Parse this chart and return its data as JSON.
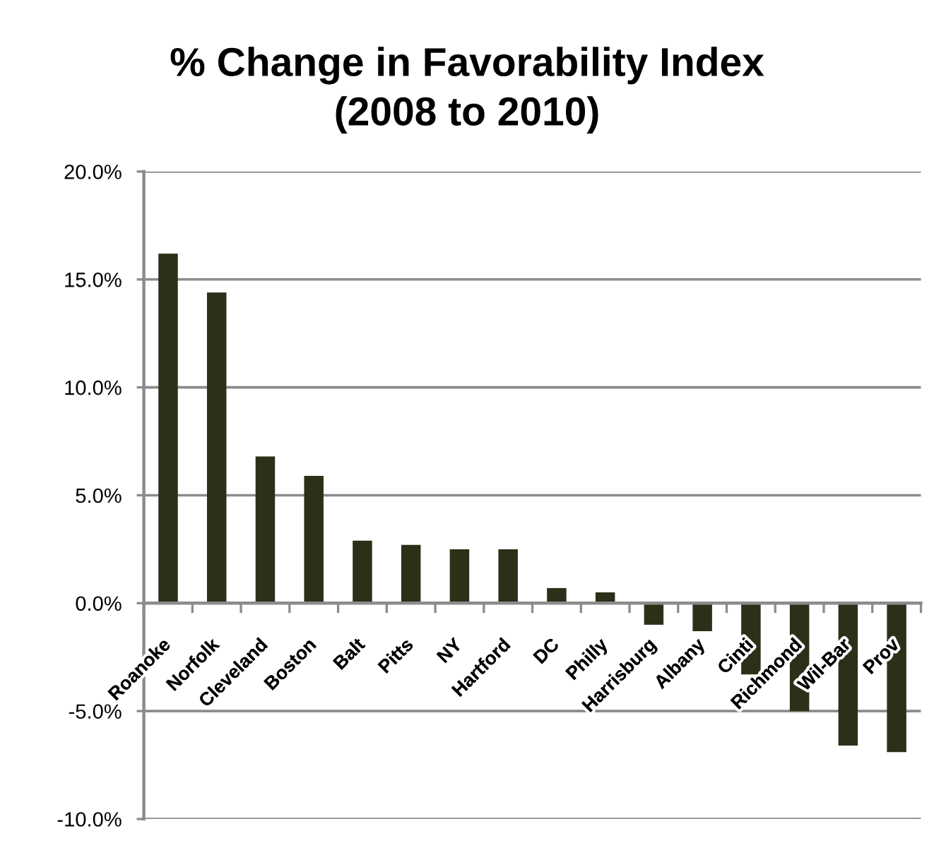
{
  "chart_data": {
    "type": "bar",
    "title": "% Change in Favorability Index\n(2008 to 2010)",
    "categories": [
      "Roanoke",
      "Norfolk",
      "Cleveland",
      "Boston",
      "Balt",
      "Pitts",
      "NY",
      "Hartford",
      "DC",
      "Philly",
      "Harrisburg",
      "Albany",
      "Cinti",
      "Richmond",
      "Wil-Bar",
      "Prov"
    ],
    "values": [
      16.2,
      14.4,
      6.8,
      5.9,
      2.9,
      2.7,
      2.5,
      2.5,
      0.7,
      0.5,
      -1.0,
      -1.3,
      -3.3,
      -5.0,
      -6.6,
      -6.9
    ],
    "color": "#2b3119",
    "ylim": [
      -10,
      20
    ],
    "yticks": [
      {
        "value": -10,
        "label": "-10.0%"
      },
      {
        "value": -5,
        "label": "-5.0%"
      },
      {
        "value": 0,
        "label": "0.0%"
      },
      {
        "value": 5,
        "label": "5.0%"
      },
      {
        "value": 10,
        "label": "10.0%"
      },
      {
        "value": 15,
        "label": "15.0%"
      },
      {
        "value": 20,
        "label": "20.0%"
      }
    ],
    "grid": "y",
    "legend": false
  }
}
